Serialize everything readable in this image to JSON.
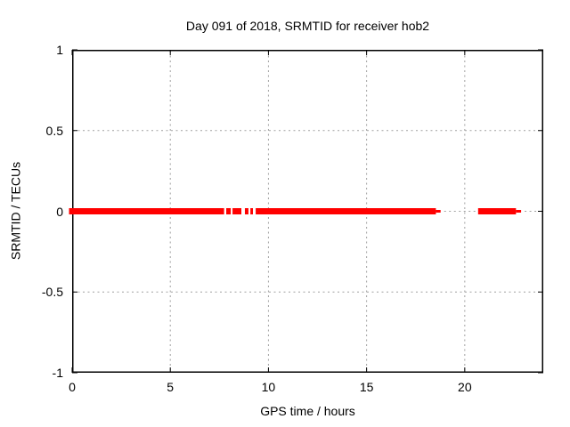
{
  "chart_data": {
    "type": "scatter",
    "title": "Day 091 of 2018, SRMTID for receiver hob2",
    "xlabel": "GPS time / hours",
    "ylabel": "SRMTID / TECUs",
    "xlim": [
      0,
      24
    ],
    "ylim": [
      -1,
      1
    ],
    "xticks": [
      {
        "v": 0,
        "label": "0"
      },
      {
        "v": 5,
        "label": "5"
      },
      {
        "v": 10,
        "label": "10"
      },
      {
        "v": 15,
        "label": "15"
      },
      {
        "v": 20,
        "label": "20"
      }
    ],
    "yticks": [
      {
        "v": -1,
        "label": "-1"
      },
      {
        "v": -0.5,
        "label": "-0.5"
      },
      {
        "v": 0,
        "label": "0"
      },
      {
        "v": 0.5,
        "label": "0.5"
      },
      {
        "v": 1,
        "label": "1"
      }
    ],
    "grid": {
      "show": true,
      "style": "dotted",
      "legend": "none"
    },
    "series": [
      {
        "name": "SRMTID",
        "marker": "square",
        "y_value": 0,
        "segments_hours": [
          [
            0.0,
            7.74
          ],
          [
            7.85,
            8.08
          ],
          [
            8.17,
            8.62
          ],
          [
            8.8,
            8.98
          ],
          [
            9.08,
            9.21
          ],
          [
            9.35,
            18.53
          ],
          [
            20.68,
            22.61
          ]
        ],
        "sparse_tail_hours": [
          [
            18.53,
            18.77
          ],
          [
            22.61,
            22.87
          ]
        ]
      }
    ],
    "colors": {
      "data": "#ff0000",
      "grid": "#a0a0a0",
      "axis": "#000000",
      "background": "#ffffff",
      "text": "#000000"
    }
  }
}
